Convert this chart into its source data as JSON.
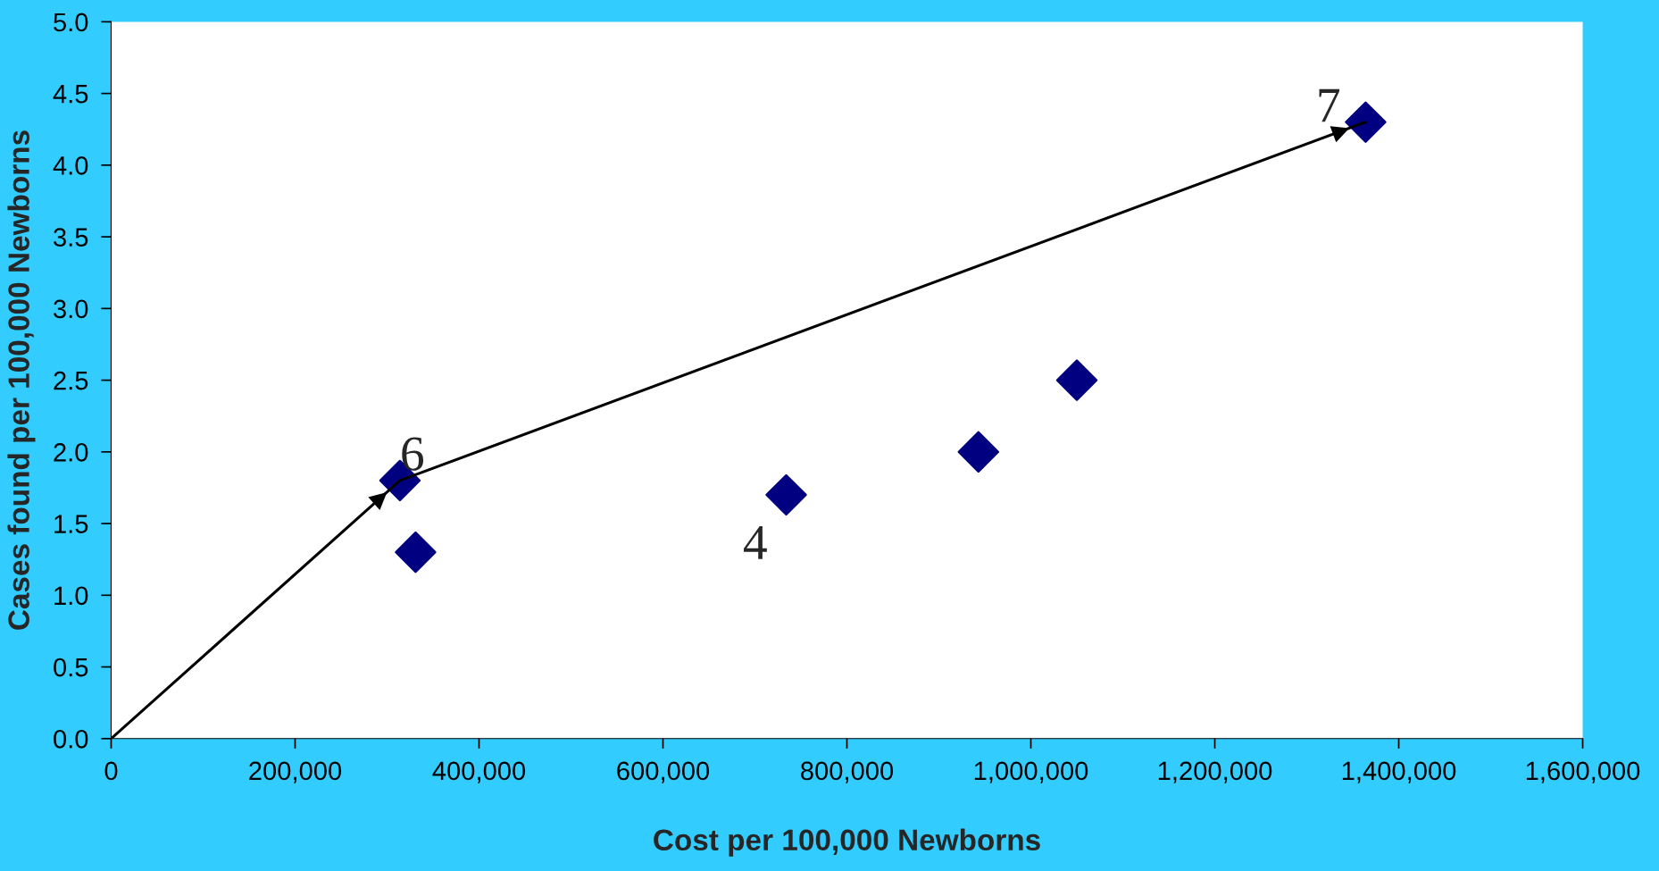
{
  "chart_data": {
    "type": "scatter",
    "xlabel": "Cost per 100,000 Newborns",
    "ylabel": "Cases found per 100,000 Newborns",
    "xlim": [
      0,
      1600000
    ],
    "ylim": [
      0,
      5.0
    ],
    "xticks": [
      {
        "value": 0,
        "label": "0"
      },
      {
        "value": 200000,
        "label": "200,000"
      },
      {
        "value": 400000,
        "label": "400,000"
      },
      {
        "value": 600000,
        "label": "600,000"
      },
      {
        "value": 800000,
        "label": "800,000"
      },
      {
        "value": 1000000,
        "label": "1,000,000"
      },
      {
        "value": 1200000,
        "label": "1,200,000"
      },
      {
        "value": 1400000,
        "label": "1,400,000"
      },
      {
        "value": 1600000,
        "label": "1,600,000"
      }
    ],
    "yticks": [
      {
        "value": 0,
        "label": "0.0"
      },
      {
        "value": 0.5,
        "label": "0.5"
      },
      {
        "value": 1.0,
        "label": "1.0"
      },
      {
        "value": 1.5,
        "label": "1.5"
      },
      {
        "value": 2.0,
        "label": "2.0"
      },
      {
        "value": 2.5,
        "label": "2.5"
      },
      {
        "value": 3.0,
        "label": "3.0"
      },
      {
        "value": 3.5,
        "label": "3.5"
      },
      {
        "value": 4.0,
        "label": "4.0"
      },
      {
        "value": 4.5,
        "label": "4.5"
      },
      {
        "value": 5.0,
        "label": "5.0"
      }
    ],
    "grid": false,
    "series": [
      {
        "marker": "diamond",
        "color": "#000080",
        "x": [
          314000,
          331000,
          734000,
          943000,
          1050000,
          1364000
        ],
        "values": [
          1.8,
          1.3,
          1.7,
          2.0,
          2.5,
          4.3
        ]
      },
      {
        "type": "line",
        "marker": "none",
        "color": "#000000",
        "x": [
          0,
          314000,
          1364000
        ],
        "values": [
          0,
          1.8,
          4.3
        ]
      }
    ],
    "annotations": [
      {
        "text": "6",
        "x": 314000,
        "y": 1.8
      },
      {
        "text": "4",
        "x": 734000,
        "y": 1.7
      },
      {
        "text": "7",
        "x": 1364000,
        "y": 4.3
      }
    ]
  }
}
